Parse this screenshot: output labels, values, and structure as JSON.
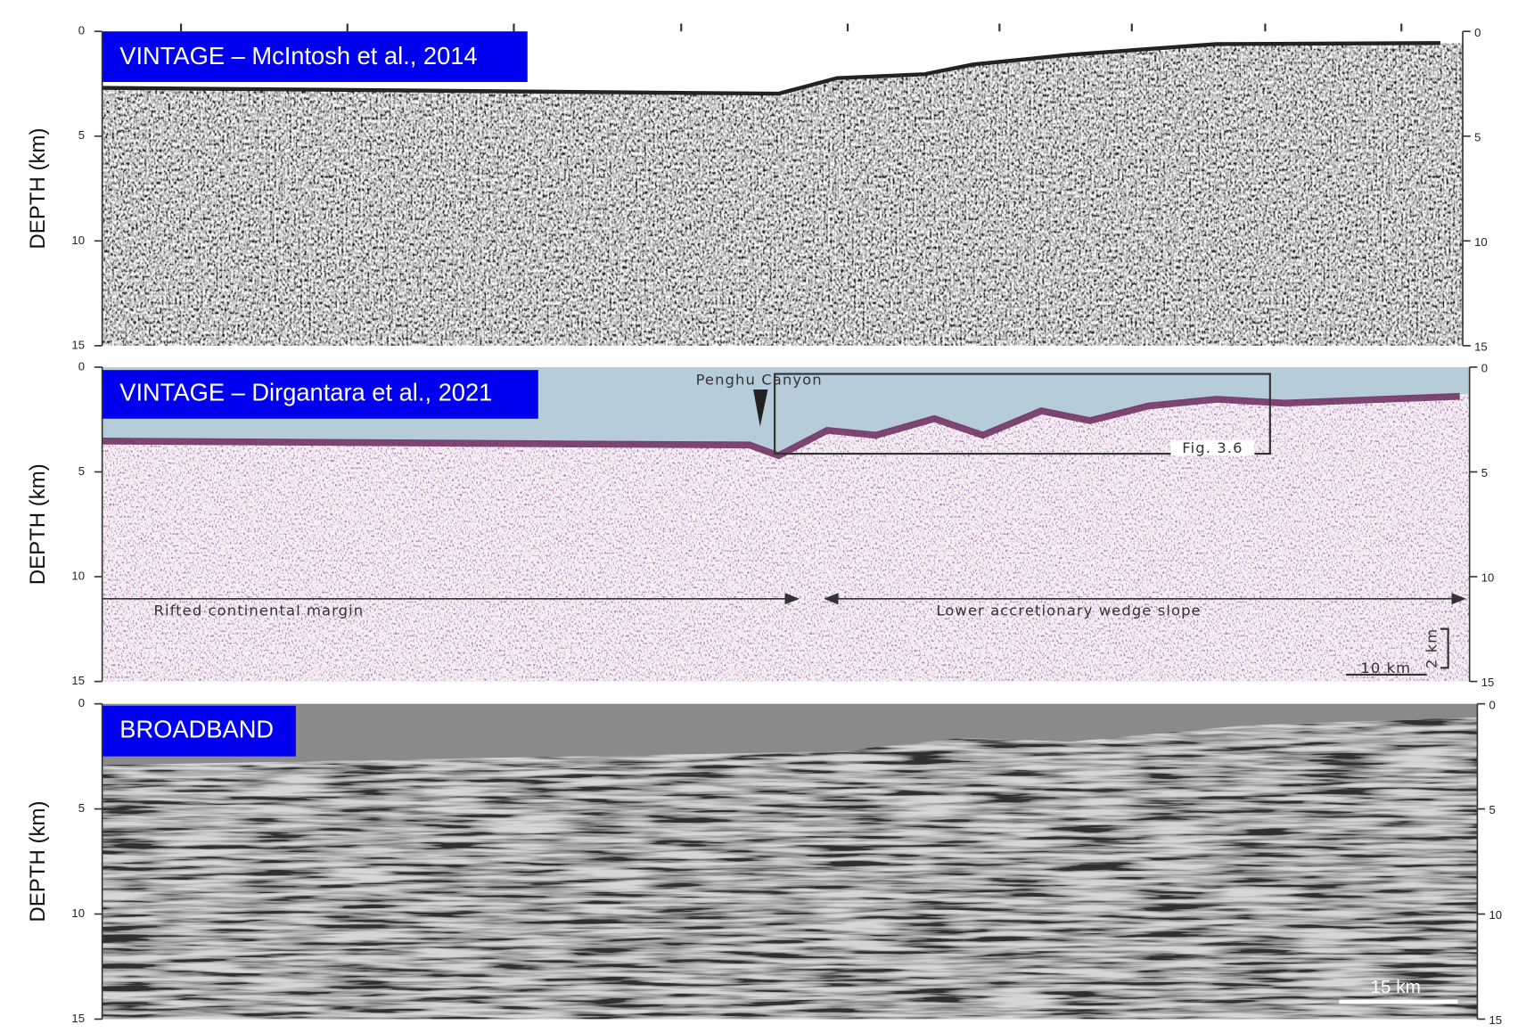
{
  "panels": [
    {
      "title": "VINTAGE – McIntosh et al., 2014",
      "y_label": "DEPTH (km)",
      "ylim": [
        0,
        15
      ],
      "yticks": [
        0,
        5,
        10,
        15
      ]
    },
    {
      "title": "VINTAGE – Dirgantara et al., 2021",
      "y_label": "DEPTH (km)",
      "ylim": [
        0,
        15
      ],
      "yticks": [
        0,
        5,
        10,
        15
      ],
      "annotations": {
        "canyon": "Penghu Canyon",
        "figure_box": "Fig. 3.6",
        "left_zone": "Rifted continental margin",
        "right_zone": "Lower accretionary wedge slope",
        "vertical_scale": "2 km",
        "horizontal_scale": "10 km"
      }
    },
    {
      "title": "BROADBAND",
      "y_label": "DEPTH (km)",
      "ylim": [
        0,
        15
      ],
      "yticks": [
        0,
        5,
        10,
        15
      ],
      "scale_bar": "15 km"
    }
  ]
}
